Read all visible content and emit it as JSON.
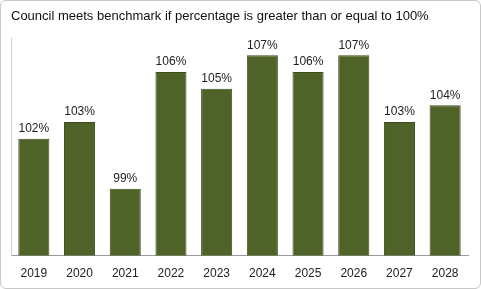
{
  "chart_data": {
    "type": "bar",
    "title": "Council meets benchmark if percentage is greater than or equal to 100%",
    "categories": [
      "2019",
      "2020",
      "2021",
      "2022",
      "2023",
      "2024",
      "2025",
      "2026",
      "2027",
      "2028"
    ],
    "values": [
      102,
      103,
      99,
      106,
      105,
      107,
      106,
      107,
      103,
      104
    ],
    "value_labels": [
      "102%",
      "103%",
      "99%",
      "106%",
      "105%",
      "107%",
      "106%",
      "107%",
      "103%",
      "104%"
    ],
    "data_labels": true,
    "color": "#4f6228",
    "ylim": [
      95,
      108
    ],
    "grid": false,
    "tick_labels": "x"
  }
}
